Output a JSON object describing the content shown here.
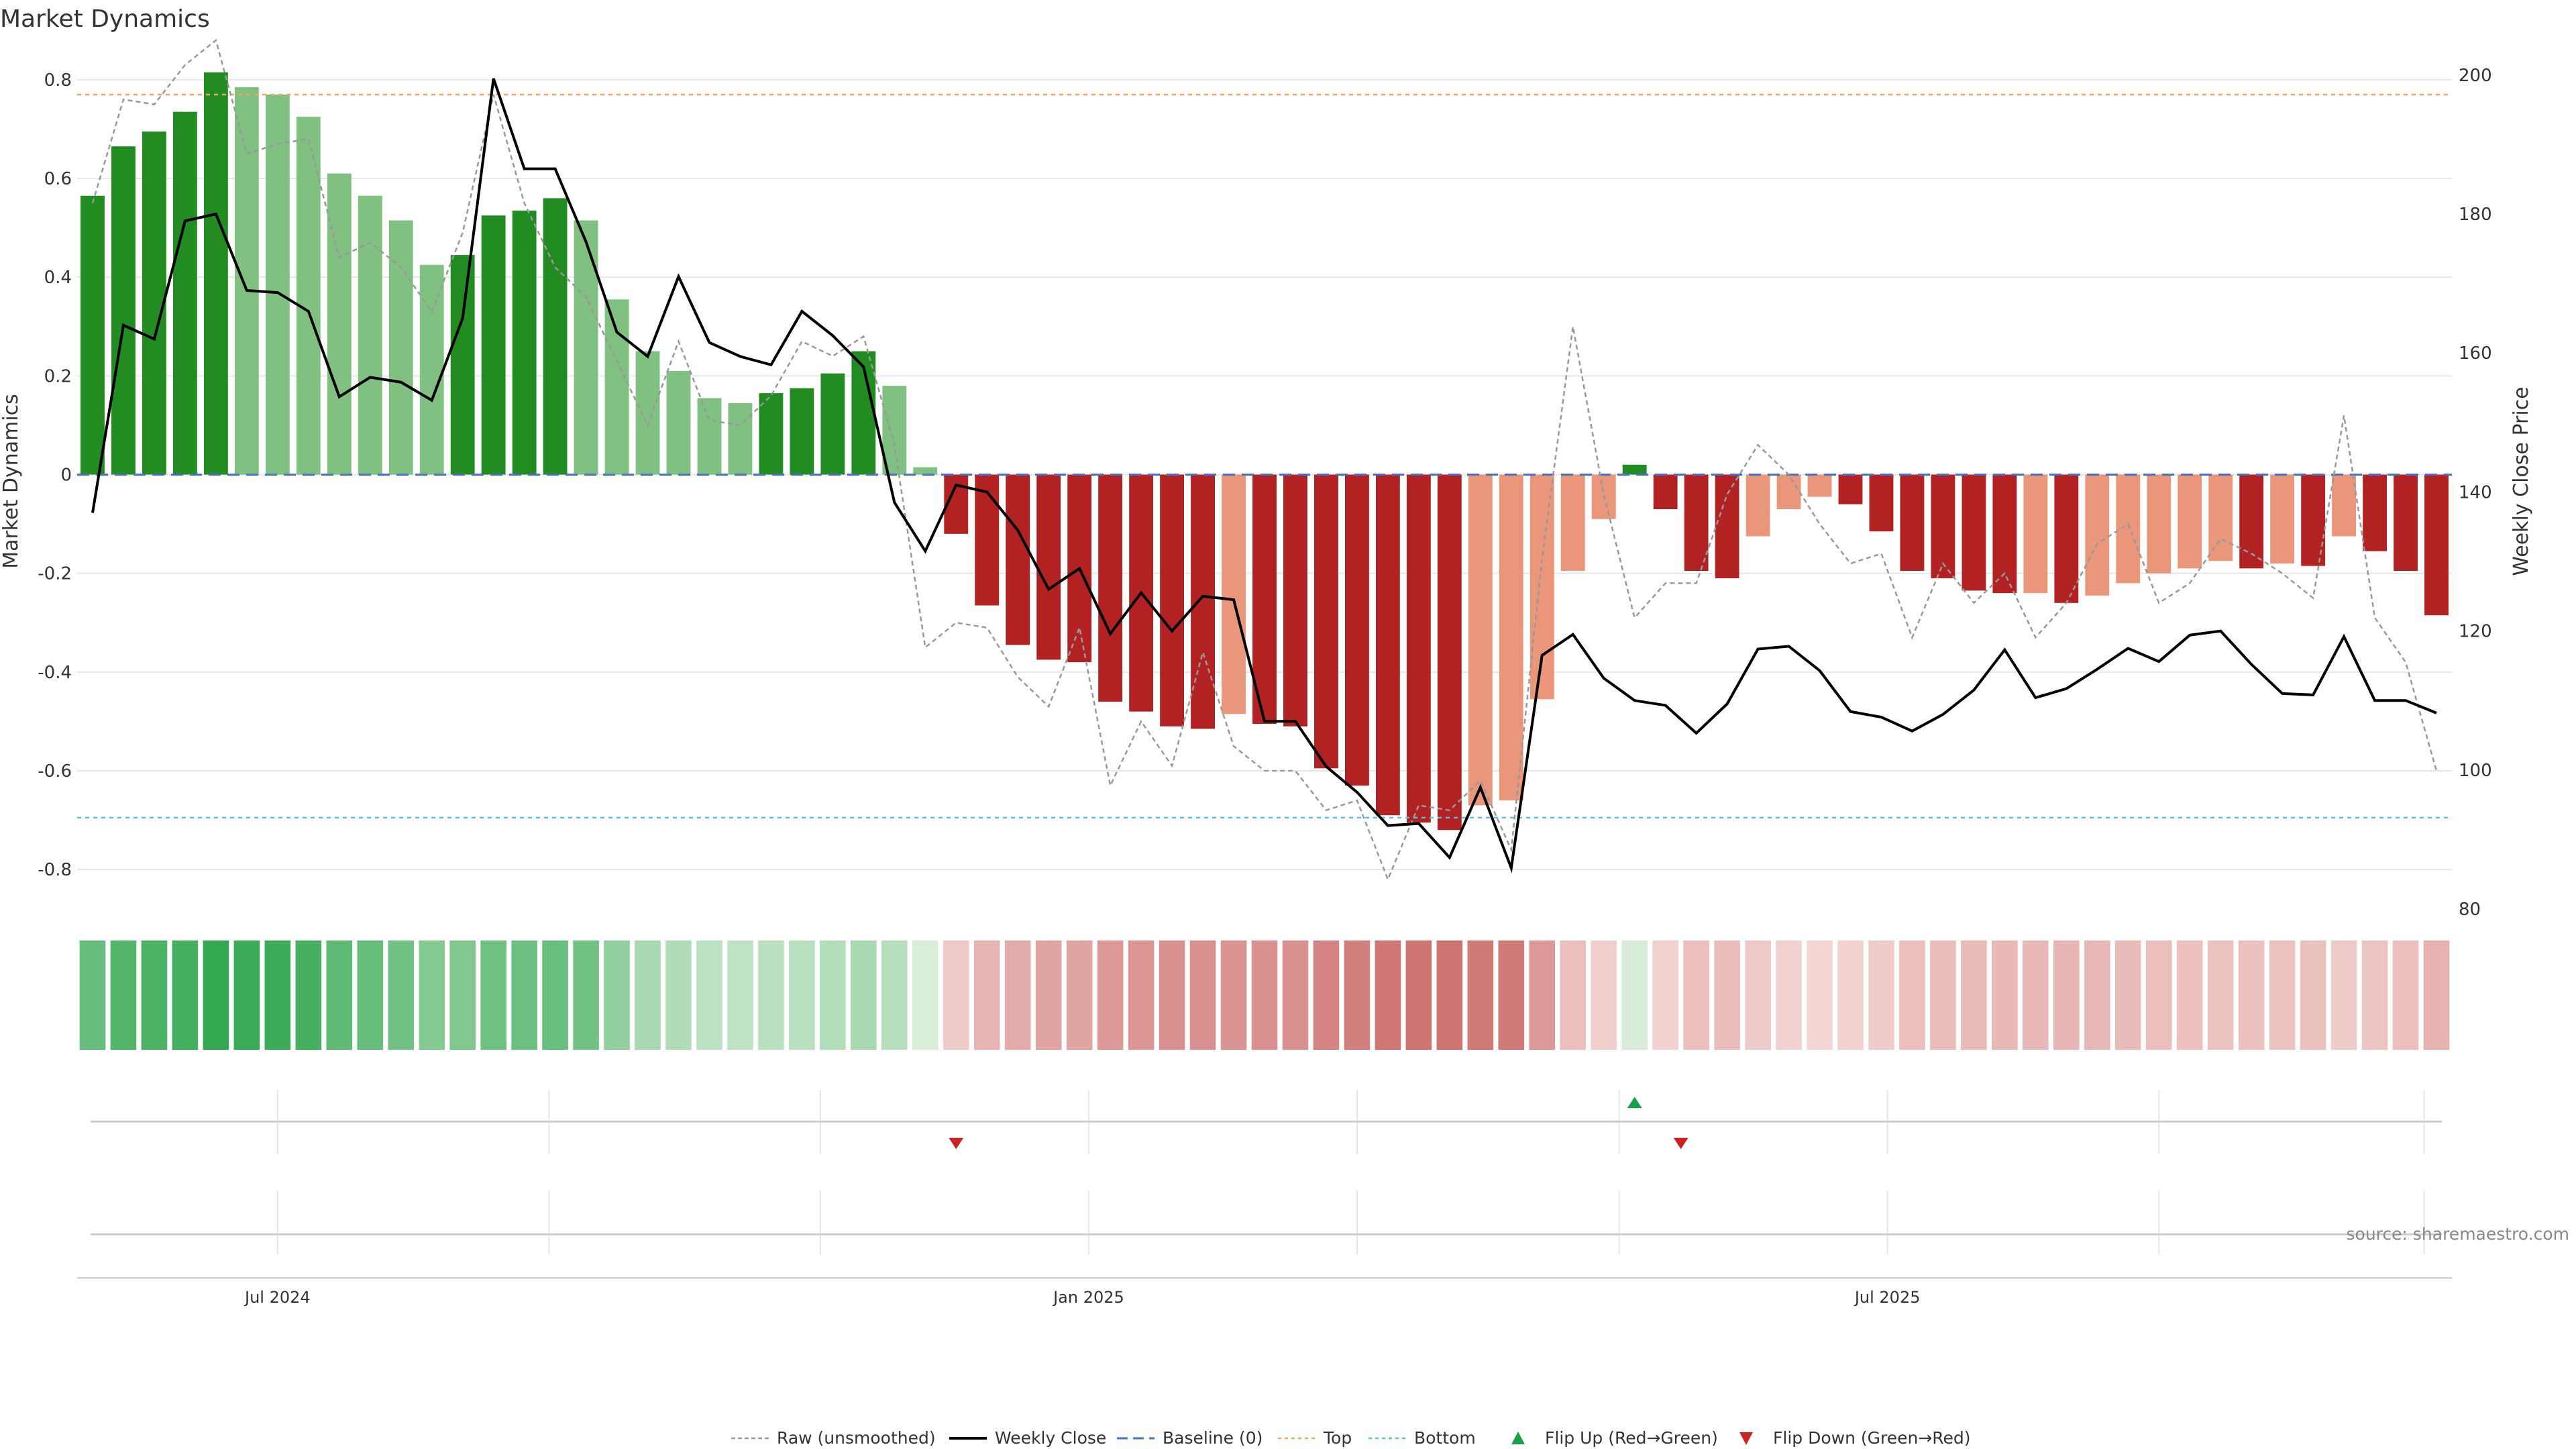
{
  "chart_data": {
    "type": "bar",
    "title": "Market Dynamics",
    "ylabel_left": "Market Dynamics",
    "ylabel_right": "Weekly Close Price",
    "ylim_left": [
      -0.88,
      0.88
    ],
    "ylim_right": [
      80,
      205
    ],
    "yticks_left": [
      {
        "v": 0.8,
        "label": "0.8"
      },
      {
        "v": 0.6,
        "label": "0.6"
      },
      {
        "v": 0.4,
        "label": "0.4"
      },
      {
        "v": 0.2,
        "label": "0.2"
      },
      {
        "v": 0,
        "label": "0"
      },
      {
        "v": -0.2,
        "label": "-0.2"
      },
      {
        "v": -0.4,
        "label": "-0.4"
      },
      {
        "v": -0.6,
        "label": "-0.6"
      },
      {
        "v": -0.8,
        "label": "-0.8"
      }
    ],
    "yticks_right": [
      {
        "v": 200,
        "label": "200"
      },
      {
        "v": 180,
        "label": "180"
      },
      {
        "v": 160,
        "label": "160"
      },
      {
        "v": 140,
        "label": "140"
      },
      {
        "v": 120,
        "label": "120"
      },
      {
        "v": 100,
        "label": "100"
      },
      {
        "v": 80,
        "label": "80"
      }
    ],
    "x_start_index": 0,
    "xticks": [
      {
        "index": 6,
        "label": "Jul 2024"
      },
      {
        "index": 32.3,
        "label": "Jan 2025"
      },
      {
        "index": 58.2,
        "label": "Jul 2025"
      }
    ],
    "vgrid_indices": [
      6,
      14.8,
      23.6,
      32.3,
      41,
      49.5,
      58.2,
      67,
      75.6
    ],
    "top_level": 0.77,
    "bottom_level": -0.695,
    "colors": {
      "green_strong": "#228B22",
      "green_light": "#80C080",
      "red_strong": "#B22222",
      "red_light": "#E9967A",
      "close_line": "#000000",
      "raw_line": "#999999",
      "baseline": "#4472C4",
      "top": "#F4A460",
      "bottom": "#5BC0DE",
      "flip_up": "#1A9E4A",
      "flip_down": "#CC2222"
    },
    "series": [
      {
        "name": "Market Dynamics",
        "values": [
          0.565,
          0.665,
          0.695,
          0.735,
          0.815,
          0.785,
          0.77,
          0.725,
          0.61,
          0.565,
          0.515,
          0.425,
          0.445,
          0.525,
          0.535,
          0.56,
          0.515,
          0.355,
          0.25,
          0.21,
          0.155,
          0.145,
          0.165,
          0.175,
          0.205,
          0.25,
          0.18,
          0.015,
          -0.12,
          -0.265,
          -0.345,
          -0.375,
          -0.38,
          -0.46,
          -0.48,
          -0.51,
          -0.515,
          -0.485,
          -0.505,
          -0.51,
          -0.595,
          -0.63,
          -0.69,
          -0.705,
          -0.72,
          -0.67,
          -0.66,
          -0.455,
          -0.195,
          -0.09,
          0.02,
          -0.07,
          -0.195,
          -0.21,
          -0.125,
          -0.07,
          -0.045,
          -0.06,
          -0.115,
          -0.195,
          -0.21,
          -0.235,
          -0.24,
          -0.24,
          -0.26,
          -0.245,
          -0.22,
          -0.2,
          -0.19,
          -0.175,
          -0.19,
          -0.18,
          -0.185,
          -0.125,
          -0.155,
          -0.195,
          -0.285
        ],
        "strength": [
          "s",
          "s",
          "s",
          "s",
          "s",
          "w",
          "w",
          "w",
          "w",
          "w",
          "w",
          "w",
          "s",
          "s",
          "s",
          "s",
          "w",
          "w",
          "w",
          "w",
          "w",
          "w",
          "s",
          "s",
          "s",
          "s",
          "w",
          "w",
          "s",
          "s",
          "s",
          "s",
          "s",
          "s",
          "s",
          "s",
          "s",
          "w",
          "s",
          "s",
          "s",
          "s",
          "s",
          "s",
          "s",
          "w",
          "w",
          "w",
          "w",
          "w",
          "s",
          "s",
          "s",
          "s",
          "w",
          "w",
          "w",
          "s",
          "s",
          "s",
          "s",
          "s",
          "s",
          "w",
          "s",
          "w",
          "w",
          "w",
          "w",
          "w",
          "s",
          "w",
          "s",
          "w",
          "s",
          "s",
          "s"
        ]
      },
      {
        "name": "Weekly Close",
        "values": [
          137,
          164,
          162,
          179,
          180,
          169,
          168.7,
          166,
          153.7,
          156.5,
          155.8,
          153.2,
          165,
          199.5,
          186.5,
          186.5,
          176,
          163,
          159.5,
          171,
          161.5,
          159.5,
          158.3,
          166,
          162.5,
          158,
          138.5,
          131.5,
          141,
          140,
          134.5,
          126,
          129,
          119.6,
          125.5,
          120,
          125,
          124.5,
          107,
          107,
          100.5,
          96.8,
          92,
          92.3,
          87.4,
          97.5,
          85.9,
          116.5,
          119.5,
          113.2,
          110,
          109.3,
          105.3,
          109.5,
          117.4,
          117.8,
          114.3,
          108.4,
          107.6,
          105.6,
          108,
          111.5,
          117.3,
          110.4,
          111.7,
          114.5,
          117.5,
          115.6,
          119.4,
          120,
          115.2,
          111,
          110.8,
          119.2,
          110,
          110,
          108.2
        ]
      },
      {
        "name": "Raw (unsmoothed)",
        "values": [
          0.55,
          0.76,
          0.75,
          0.83,
          0.88,
          0.65,
          0.67,
          0.68,
          0.44,
          0.47,
          0.42,
          0.33,
          0.49,
          0.77,
          0.55,
          0.42,
          0.36,
          0.23,
          0.1,
          0.27,
          0.11,
          0.1,
          0.16,
          0.27,
          0.24,
          0.28,
          0.06,
          -0.35,
          -0.3,
          -0.31,
          -0.41,
          -0.47,
          -0.31,
          -0.63,
          -0.5,
          -0.59,
          -0.36,
          -0.55,
          -0.6,
          -0.6,
          -0.68,
          -0.66,
          -0.82,
          -0.67,
          -0.68,
          -0.62,
          -0.76,
          -0.17,
          0.3,
          -0.04,
          -0.29,
          -0.22,
          -0.22,
          -0.04,
          0.06,
          0.0,
          -0.1,
          -0.18,
          -0.16,
          -0.33,
          -0.18,
          -0.26,
          -0.2,
          -0.33,
          -0.26,
          -0.14,
          -0.1,
          -0.26,
          -0.22,
          -0.13,
          -0.16,
          -0.2,
          -0.25,
          0.12,
          -0.29,
          -0.38,
          -0.6
        ]
      }
    ],
    "heat_strip": {
      "values": [
        0.565,
        0.665,
        0.695,
        0.735,
        0.815,
        0.785,
        0.77,
        0.725,
        0.61,
        0.565,
        0.515,
        0.425,
        0.445,
        0.525,
        0.535,
        0.56,
        0.515,
        0.355,
        0.25,
        0.21,
        0.155,
        0.145,
        0.165,
        0.175,
        0.205,
        0.25,
        0.18,
        0.015,
        -0.12,
        -0.265,
        -0.345,
        -0.375,
        -0.38,
        -0.46,
        -0.48,
        -0.51,
        -0.515,
        -0.485,
        -0.505,
        -0.51,
        -0.595,
        -0.63,
        -0.69,
        -0.705,
        -0.72,
        -0.67,
        -0.66,
        -0.455,
        -0.195,
        -0.09,
        0.02,
        -0.07,
        -0.195,
        -0.21,
        -0.125,
        -0.07,
        -0.045,
        -0.06,
        -0.115,
        -0.195,
        -0.21,
        -0.235,
        -0.24,
        -0.24,
        -0.26,
        -0.245,
        -0.22,
        -0.2,
        -0.19,
        -0.175,
        -0.19,
        -0.18,
        -0.185,
        -0.125,
        -0.155,
        -0.195,
        -0.285
      ]
    },
    "flips": [
      {
        "index": 28,
        "type": "down"
      },
      {
        "index": 50,
        "type": "up"
      },
      {
        "index": 51.5,
        "type": "down"
      }
    ],
    "legend_position": "bottom-center",
    "legend": [
      {
        "key": "raw",
        "label": "Raw (unsmoothed)"
      },
      {
        "key": "close",
        "label": "Weekly Close"
      },
      {
        "key": "baseline",
        "label": "Baseline (0)"
      },
      {
        "key": "top",
        "label": "Top"
      },
      {
        "key": "bottom",
        "label": "Bottom"
      },
      {
        "key": "flip_up",
        "label": "Flip Up (Red→Green)"
      },
      {
        "key": "flip_down",
        "label": "Flip Down (Green→Red)"
      }
    ],
    "source": "source: sharemaestro.com"
  }
}
